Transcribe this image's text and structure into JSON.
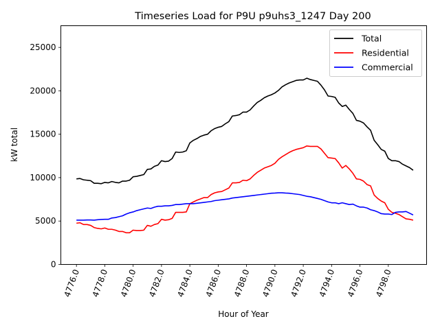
{
  "chart_data": {
    "type": "line",
    "title": "Timeseries Load for P9U p9uhs3_1247  Day 200",
    "xlabel": "Hour of Year",
    "ylabel": "kW total",
    "xlim": [
      4774.9,
      4800.7
    ],
    "ylim": [
      0,
      27500
    ],
    "xticks": [
      4776,
      4778,
      4780,
      4782,
      4784,
      4786,
      4788,
      4790,
      4792,
      4794,
      4796,
      4798
    ],
    "xtick_labels": [
      "4776.0",
      "4778.0",
      "4780.0",
      "4782.0",
      "4784.0",
      "4786.0",
      "4788.0",
      "4790.0",
      "4792.0",
      "4794.0",
      "4796.0",
      "4798.0"
    ],
    "yticks": [
      0,
      5000,
      10000,
      15000,
      20000,
      25000
    ],
    "ytick_labels": [
      "0",
      "5000",
      "10000",
      "15000",
      "20000",
      "25000"
    ],
    "legend_position": "top-right",
    "grid": false,
    "x_start": 4776,
    "x_step": 0.25,
    "series": [
      {
        "name": "Total",
        "color": "#000000",
        "values": [
          9850,
          9900,
          9750,
          9700,
          9650,
          9350,
          9350,
          9300,
          9450,
          9400,
          9550,
          9450,
          9400,
          9600,
          9600,
          9700,
          10100,
          10150,
          10250,
          10350,
          10950,
          11000,
          11300,
          11450,
          11950,
          11850,
          11900,
          12200,
          12950,
          12900,
          12950,
          13100,
          14000,
          14300,
          14500,
          14750,
          14900,
          15000,
          15400,
          15650,
          15800,
          15900,
          16200,
          16450,
          17100,
          17150,
          17250,
          17550,
          17550,
          17800,
          18250,
          18650,
          18900,
          19200,
          19400,
          19550,
          19750,
          20050,
          20450,
          20700,
          20900,
          21050,
          21200,
          21250,
          21250,
          21450,
          21300,
          21200,
          21100,
          20650,
          20100,
          19400,
          19350,
          19250,
          18600,
          18200,
          18350,
          17850,
          17400,
          16600,
          16500,
          16300,
          15850,
          15450,
          14300,
          13800,
          13250,
          13050,
          12200,
          11950,
          11950,
          11850,
          11550,
          11350,
          11150,
          10850
        ]
      },
      {
        "name": "Residential",
        "color": "#ff0000",
        "values": [
          4750,
          4800,
          4600,
          4600,
          4500,
          4250,
          4150,
          4100,
          4200,
          4050,
          4050,
          3950,
          3800,
          3800,
          3650,
          3650,
          3950,
          3900,
          3900,
          3950,
          4500,
          4400,
          4600,
          4700,
          5200,
          5100,
          5150,
          5300,
          6000,
          6000,
          6000,
          6050,
          7000,
          7200,
          7400,
          7550,
          7700,
          7700,
          8050,
          8250,
          8350,
          8400,
          8600,
          8800,
          9400,
          9400,
          9450,
          9700,
          9650,
          9850,
          10250,
          10600,
          10850,
          11100,
          11250,
          11400,
          11650,
          12100,
          12400,
          12650,
          12900,
          13100,
          13250,
          13350,
          13450,
          13650,
          13600,
          13600,
          13600,
          13300,
          12800,
          12300,
          12250,
          12200,
          11700,
          11100,
          11400,
          11000,
          10500,
          9850,
          9800,
          9600,
          9200,
          9050,
          8000,
          7600,
          7300,
          7100,
          6350,
          6000,
          5900,
          5750,
          5500,
          5250,
          5200,
          5100
        ]
      },
      {
        "name": "Commercial",
        "color": "#0000ff",
        "values": [
          5100,
          5100,
          5100,
          5120,
          5120,
          5100,
          5150,
          5180,
          5200,
          5200,
          5350,
          5400,
          5500,
          5600,
          5800,
          5950,
          6050,
          6200,
          6300,
          6400,
          6500,
          6450,
          6600,
          6700,
          6700,
          6750,
          6750,
          6800,
          6900,
          6900,
          6950,
          7000,
          7000,
          7000,
          7050,
          7100,
          7150,
          7200,
          7250,
          7350,
          7400,
          7450,
          7500,
          7550,
          7650,
          7700,
          7750,
          7800,
          7850,
          7900,
          7950,
          8000,
          8050,
          8100,
          8150,
          8200,
          8220,
          8250,
          8250,
          8220,
          8200,
          8150,
          8100,
          8050,
          7950,
          7850,
          7800,
          7700,
          7600,
          7500,
          7350,
          7200,
          7100,
          7100,
          7000,
          7100,
          7000,
          6900,
          6950,
          6750,
          6600,
          6600,
          6500,
          6300,
          6200,
          6050,
          5850,
          5800,
          5800,
          5750,
          6000,
          6050,
          6050,
          6100,
          5900,
          5700
        ]
      }
    ]
  }
}
